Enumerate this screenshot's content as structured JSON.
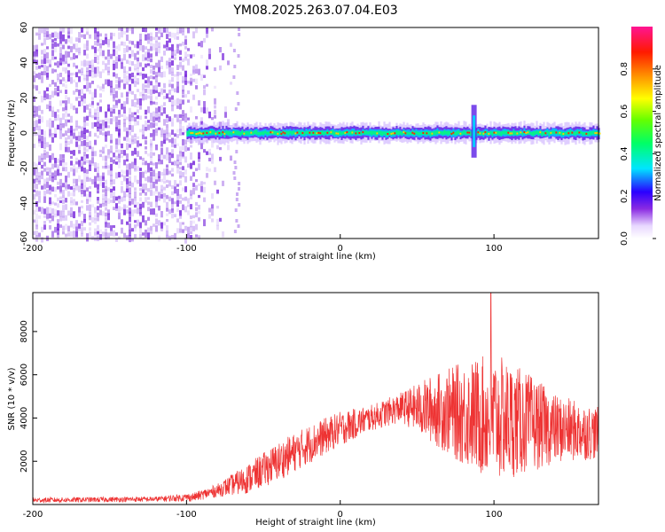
{
  "title": "YM08.2025.263.07.04.E03",
  "chart_data": [
    {
      "type": "heatmap",
      "xlabel": "Height of straight line (km)",
      "ylabel": "Frequency (Hz)",
      "xlim": [
        -200,
        168
      ],
      "ylim": [
        -60,
        60
      ],
      "xticks": [
        -200,
        -100,
        0,
        100
      ],
      "yticks": [
        60,
        40,
        20,
        0,
        -20,
        -40,
        -60
      ],
      "colorbar": {
        "label": "Normalized spectral amplitude",
        "range": [
          0.0,
          1.0
        ],
        "ticks": [
          "0.0",
          "0.2",
          "0.4",
          "0.6",
          "0.8"
        ]
      },
      "band_center_hz": 0,
      "noise_region_km": [
        -200,
        -95
      ],
      "signal_band_km": [
        -100,
        168
      ],
      "feature_km": 87
    },
    {
      "type": "line",
      "xlabel": "Height of straight line (km)",
      "ylabel": "SNR (10 * v/v)",
      "xlim": [
        -200,
        168
      ],
      "ylim": [
        0,
        9800
      ],
      "xticks": [
        -200,
        -100,
        0,
        100
      ],
      "yticks": [
        2000,
        4000,
        6000,
        8000
      ],
      "color": "#ee3333",
      "envelope": {
        "x": [
          -200,
          -120,
          -95,
          -80,
          -60,
          -40,
          -20,
          0,
          20,
          40,
          60,
          80,
          100,
          120,
          140,
          168
        ],
        "mean": [
          200,
          250,
          350,
          650,
          1200,
          2000,
          2800,
          3500,
          4000,
          4500,
          4400,
          4200,
          4000,
          3800,
          3500,
          3300
        ],
        "spread": [
          120,
          120,
          200,
          300,
          700,
          900,
          900,
          800,
          600,
          700,
          1600,
          2400,
          3000,
          2400,
          1600,
          1200
        ]
      },
      "peak": {
        "x": 98,
        "y": 9800
      }
    }
  ]
}
